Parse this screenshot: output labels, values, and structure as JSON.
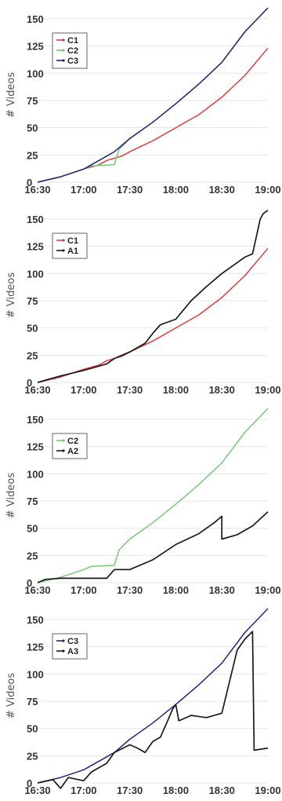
{
  "chart_data": [
    {
      "type": "line",
      "ylabel": "# Videos",
      "ylim": [
        0,
        160
      ],
      "yticks": [
        "0",
        "25",
        "50",
        "75",
        "100",
        "125",
        "150"
      ],
      "xticks": [
        "16:30",
        "17:00",
        "17:30",
        "18:00",
        "18:30",
        "19:00"
      ],
      "legend_position": "top-left",
      "series": [
        {
          "name": "C1",
          "color": "#e03c3c",
          "x": [
            "16:30",
            "16:45",
            "17:00",
            "17:10",
            "17:15",
            "17:25",
            "17:30",
            "17:45",
            "18:00",
            "18:15",
            "18:30",
            "18:45",
            "19:00"
          ],
          "y": [
            0,
            5,
            12,
            16,
            20,
            24,
            28,
            38,
            50,
            62,
            78,
            98,
            123
          ]
        },
        {
          "name": "C2",
          "color": "#78c878",
          "x": [
            "16:30",
            "16:45",
            "17:00",
            "17:05",
            "17:20",
            "17:23",
            "17:30",
            "17:45",
            "18:00",
            "18:15",
            "18:30",
            "18:45",
            "19:00"
          ],
          "y": [
            0,
            5,
            12,
            15,
            16,
            30,
            40,
            55,
            72,
            90,
            110,
            138,
            160
          ]
        },
        {
          "name": "C3",
          "color": "#24247a",
          "x": [
            "16:30",
            "16:45",
            "17:00",
            "17:10",
            "17:20",
            "17:30",
            "17:45",
            "18:00",
            "18:15",
            "18:30",
            "18:45",
            "19:00"
          ],
          "y": [
            0,
            5,
            12,
            20,
            28,
            40,
            55,
            72,
            90,
            110,
            138,
            160
          ]
        }
      ]
    },
    {
      "type": "line",
      "ylabel": "# Videos",
      "ylim": [
        0,
        160
      ],
      "yticks": [
        "0",
        "25",
        "50",
        "75",
        "100",
        "125",
        "150"
      ],
      "xticks": [
        "16:30",
        "17:00",
        "17:30",
        "18:00",
        "18:30",
        "19:00"
      ],
      "legend_position": "top-left",
      "series": [
        {
          "name": "C1",
          "color": "#e03c3c",
          "x": [
            "16:30",
            "16:45",
            "17:00",
            "17:10",
            "17:15",
            "17:25",
            "17:30",
            "17:45",
            "18:00",
            "18:15",
            "18:30",
            "18:45",
            "19:00"
          ],
          "y": [
            0,
            5,
            12,
            16,
            20,
            24,
            28,
            38,
            50,
            62,
            78,
            98,
            123
          ]
        },
        {
          "name": "A1",
          "color": "#1a1a1a",
          "x": [
            "16:30",
            "16:45",
            "17:00",
            "17:15",
            "17:20",
            "17:30",
            "17:40",
            "17:45",
            "17:50",
            "18:00",
            "18:10",
            "18:20",
            "18:30",
            "18:40",
            "18:45",
            "18:50",
            "18:55",
            "18:57",
            "19:00"
          ],
          "y": [
            0,
            6,
            11,
            17,
            22,
            28,
            36,
            45,
            53,
            58,
            75,
            88,
            100,
            110,
            115,
            118,
            150,
            155,
            158
          ]
        }
      ]
    },
    {
      "type": "line",
      "ylabel": "# Videos",
      "ylim": [
        0,
        160
      ],
      "yticks": [
        "0",
        "25",
        "50",
        "75",
        "100",
        "125",
        "150"
      ],
      "xticks": [
        "16:30",
        "17:00",
        "17:30",
        "18:00",
        "18:30",
        "19:00"
      ],
      "legend_position": "top-left",
      "series": [
        {
          "name": "C2",
          "color": "#78c878",
          "x": [
            "16:30",
            "16:45",
            "17:00",
            "17:05",
            "17:20",
            "17:23",
            "17:30",
            "17:45",
            "18:00",
            "18:15",
            "18:30",
            "18:45",
            "19:00"
          ],
          "y": [
            0,
            5,
            12,
            15,
            16,
            30,
            40,
            55,
            72,
            90,
            110,
            138,
            160
          ]
        },
        {
          "name": "A2",
          "color": "#1a1a1a",
          "x": [
            "16:30",
            "16:35",
            "16:45",
            "17:00",
            "17:15",
            "17:20",
            "17:30",
            "17:45",
            "18:00",
            "18:15",
            "18:25",
            "18:30",
            "18:30",
            "18:40",
            "18:50",
            "19:00"
          ],
          "y": [
            0,
            3,
            4,
            4,
            4,
            12,
            12,
            21,
            35,
            45,
            55,
            61,
            40,
            44,
            52,
            65
          ]
        }
      ]
    },
    {
      "type": "line",
      "ylabel": "# Videos",
      "ylim": [
        0,
        160
      ],
      "yticks": [
        "0",
        "25",
        "50",
        "75",
        "100",
        "125",
        "150"
      ],
      "xticks": [
        "16:30",
        "17:00",
        "17:30",
        "18:00",
        "18:30",
        "19:00"
      ],
      "legend_position": "top-left",
      "series": [
        {
          "name": "C3",
          "color": "#24247a",
          "x": [
            "16:30",
            "16:45",
            "17:00",
            "17:10",
            "17:20",
            "17:30",
            "17:45",
            "18:00",
            "18:15",
            "18:30",
            "18:45",
            "19:00"
          ],
          "y": [
            0,
            5,
            12,
            20,
            28,
            40,
            55,
            72,
            90,
            110,
            138,
            160
          ]
        },
        {
          "name": "A3",
          "color": "#1a1a1a",
          "x": [
            "16:30",
            "16:40",
            "16:45",
            "16:50",
            "17:00",
            "17:05",
            "17:15",
            "17:20",
            "17:30",
            "17:35",
            "17:40",
            "17:45",
            "17:50",
            "17:55",
            "17:58",
            "18:00",
            "18:02",
            "18:10",
            "18:20",
            "18:30",
            "18:40",
            "18:45",
            "18:50",
            "18:51",
            "19:00"
          ],
          "y": [
            0,
            3,
            -5,
            5,
            2,
            10,
            18,
            28,
            35,
            32,
            28,
            38,
            42,
            58,
            68,
            72,
            57,
            62,
            60,
            64,
            122,
            132,
            139,
            30,
            32
          ]
        }
      ]
    }
  ]
}
